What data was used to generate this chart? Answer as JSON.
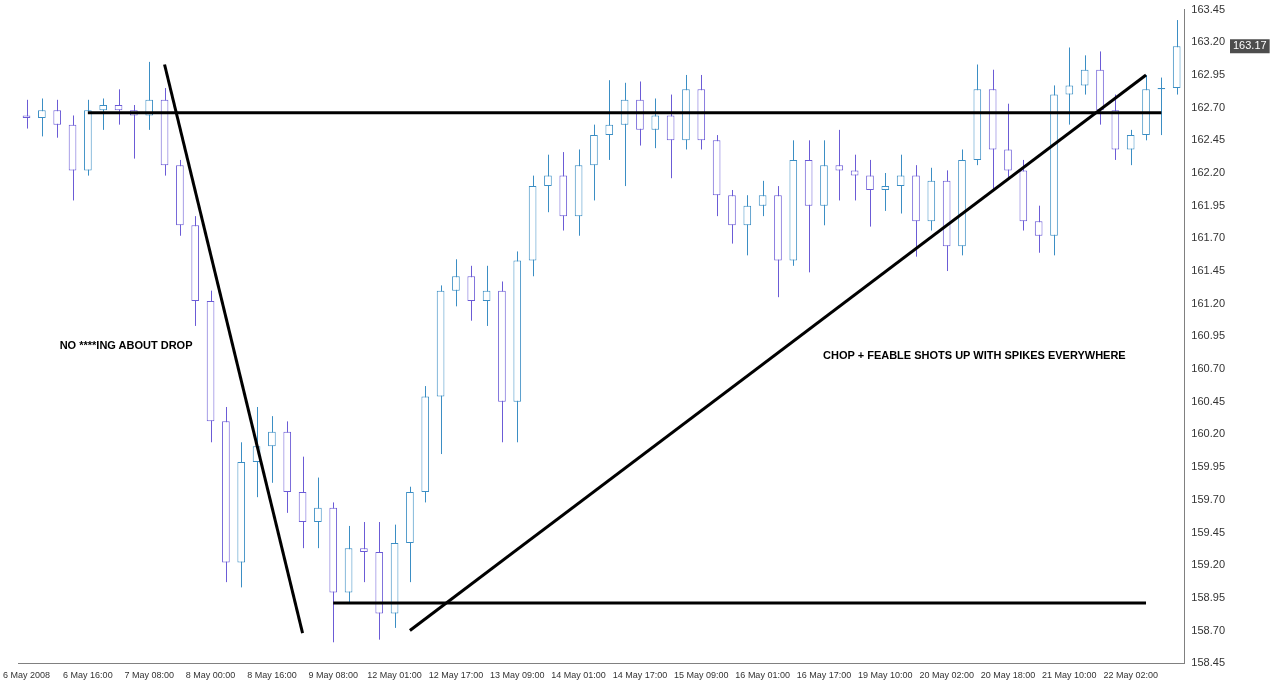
{
  "chart_data": {
    "type": "candlestick",
    "categories": [
      "6 May 2008",
      null,
      null,
      null,
      "6 May 16:00",
      null,
      null,
      null,
      "7 May 08:00",
      null,
      null,
      null,
      "8 May 00:00",
      null,
      null,
      null,
      "8 May 16:00",
      null,
      null,
      null,
      "9 May 08:00",
      null,
      null,
      null,
      "12 May 01:00",
      null,
      null,
      null,
      "12 May 17:00",
      null,
      null,
      null,
      "13 May 09:00",
      null,
      null,
      null,
      "14 May 01:00",
      null,
      null,
      null,
      "14 May 17:00",
      null,
      null,
      null,
      "15 May 09:00",
      null,
      null,
      null,
      "16 May 01:00",
      null,
      null,
      null,
      "16 May 17:00",
      null,
      null,
      null,
      "19 May 10:00",
      null,
      null,
      null,
      "20 May 02:00",
      null,
      null,
      null,
      "20 May 18:00",
      null,
      null,
      null,
      "21 May 10:00",
      null,
      null,
      null,
      "22 May 02:00",
      null,
      null,
      null
    ],
    "ohlc": [
      [
        162.64,
        162.76,
        162.54,
        162.62
      ],
      [
        162.62,
        162.77,
        162.48,
        162.68
      ],
      [
        162.68,
        162.76,
        162.47,
        162.57
      ],
      [
        162.57,
        162.64,
        161.99,
        162.22
      ],
      [
        162.22,
        162.76,
        162.18,
        162.68
      ],
      [
        162.68,
        162.77,
        162.53,
        162.72
      ],
      [
        162.72,
        162.84,
        162.57,
        162.68
      ],
      [
        162.68,
        162.72,
        162.31,
        162.64
      ],
      [
        162.64,
        163.05,
        162.53,
        162.76
      ],
      [
        162.76,
        162.85,
        162.18,
        162.26
      ],
      [
        162.26,
        162.3,
        161.72,
        161.8
      ],
      [
        161.8,
        161.87,
        161.03,
        161.22
      ],
      [
        161.22,
        161.3,
        160.14,
        160.3
      ],
      [
        160.3,
        160.41,
        159.07,
        159.22
      ],
      [
        159.22,
        160.14,
        159.03,
        159.99
      ],
      [
        159.99,
        160.41,
        159.72,
        160.11
      ],
      [
        160.11,
        160.34,
        159.83,
        160.22
      ],
      [
        160.22,
        160.3,
        159.6,
        159.76
      ],
      [
        159.76,
        160.03,
        159.33,
        159.53
      ],
      [
        159.53,
        159.87,
        159.33,
        159.64
      ],
      [
        159.64,
        159.68,
        158.61,
        158.99
      ],
      [
        158.99,
        159.5,
        158.91,
        159.33
      ],
      [
        159.33,
        159.53,
        159.07,
        159.3
      ],
      [
        159.3,
        159.53,
        158.63,
        158.83
      ],
      [
        158.83,
        159.51,
        158.72,
        159.37
      ],
      [
        159.37,
        159.8,
        159.07,
        159.76
      ],
      [
        159.76,
        160.57,
        159.68,
        160.49
      ],
      [
        160.49,
        161.34,
        160.05,
        161.3
      ],
      [
        161.3,
        161.54,
        161.18,
        161.41
      ],
      [
        161.41,
        161.49,
        161.07,
        161.22
      ],
      [
        161.22,
        161.49,
        161.03,
        161.3
      ],
      [
        161.3,
        161.37,
        160.14,
        160.45
      ],
      [
        160.45,
        161.6,
        160.14,
        161.53
      ],
      [
        161.53,
        162.18,
        161.41,
        162.1
      ],
      [
        162.1,
        162.34,
        161.9,
        162.18
      ],
      [
        162.18,
        162.36,
        161.76,
        161.87
      ],
      [
        161.87,
        162.38,
        161.72,
        162.26
      ],
      [
        162.26,
        162.57,
        161.99,
        162.49
      ],
      [
        162.49,
        162.91,
        162.3,
        162.57
      ],
      [
        162.57,
        162.89,
        162.1,
        162.76
      ],
      [
        162.76,
        162.9,
        162.41,
        162.53
      ],
      [
        162.53,
        162.77,
        162.39,
        162.64
      ],
      [
        162.64,
        162.8,
        162.16,
        162.45
      ],
      [
        162.45,
        162.95,
        162.38,
        162.84
      ],
      [
        162.84,
        162.95,
        162.38,
        162.45
      ],
      [
        162.45,
        162.49,
        161.87,
        162.03
      ],
      [
        162.03,
        162.07,
        161.66,
        161.8
      ],
      [
        161.8,
        162.03,
        161.57,
        161.95
      ],
      [
        161.95,
        162.14,
        161.87,
        162.03
      ],
      [
        162.03,
        162.1,
        161.25,
        161.53
      ],
      [
        161.53,
        162.45,
        161.49,
        162.3
      ],
      [
        162.3,
        162.45,
        161.44,
        161.95
      ],
      [
        161.95,
        162.45,
        161.8,
        162.26
      ],
      [
        162.26,
        162.53,
        161.99,
        162.22
      ],
      [
        162.22,
        162.34,
        161.99,
        162.18
      ],
      [
        162.18,
        162.3,
        161.79,
        162.07
      ],
      [
        162.07,
        162.2,
        161.91,
        162.1
      ],
      [
        162.1,
        162.34,
        161.89,
        162.18
      ],
      [
        162.18,
        162.26,
        161.56,
        161.83
      ],
      [
        161.83,
        162.24,
        161.76,
        162.14
      ],
      [
        162.14,
        162.22,
        161.45,
        161.64
      ],
      [
        161.64,
        162.38,
        161.57,
        162.3
      ],
      [
        162.3,
        163.03,
        162.26,
        162.84
      ],
      [
        162.84,
        162.99,
        162.07,
        162.38
      ],
      [
        162.38,
        162.73,
        162.16,
        162.22
      ],
      [
        162.22,
        162.3,
        161.76,
        161.83
      ],
      [
        161.83,
        161.95,
        161.59,
        161.72
      ],
      [
        161.72,
        162.87,
        161.57,
        162.8
      ],
      [
        162.8,
        163.16,
        162.57,
        162.87
      ],
      [
        162.87,
        163.1,
        162.8,
        162.99
      ],
      [
        162.99,
        163.13,
        162.57,
        162.68
      ],
      [
        162.68,
        162.8,
        162.3,
        162.38
      ],
      [
        162.38,
        162.53,
        162.26,
        162.49
      ],
      [
        162.49,
        162.95,
        162.45,
        162.84
      ],
      [
        162.84,
        162.93,
        162.49,
        162.85
      ],
      [
        162.85,
        163.37,
        162.8,
        163.17
      ]
    ],
    "colors": [
      "#6b5bd6",
      "#3b8ec4",
      "#6b5bd6",
      "#6b5bd6",
      "#3b8ec4",
      "#3b8ec4",
      "#6b5bd6",
      "#6b5bd6",
      "#3b8ec4",
      "#6b5bd6",
      "#6b5bd6",
      "#6b5bd6",
      "#6b5bd6",
      "#6b5bd6",
      "#3b8ec4",
      "#3b8ec4",
      "#3b8ec4",
      "#6b5bd6",
      "#6b5bd6",
      "#3b8ec4",
      "#6b5bd6",
      "#3b8ec4",
      "#6b5bd6",
      "#6b5bd6",
      "#3b8ec4",
      "#3b8ec4",
      "#3b8ec4",
      "#3b8ec4",
      "#3b8ec4",
      "#6b5bd6",
      "#3b8ec4",
      "#6b5bd6",
      "#3b8ec4",
      "#3b8ec4",
      "#3b8ec4",
      "#6b5bd6",
      "#3b8ec4",
      "#3b8ec4",
      "#3b8ec4",
      "#3b8ec4",
      "#6b5bd6",
      "#3b8ec4",
      "#6b5bd6",
      "#3b8ec4",
      "#6b5bd6",
      "#6b5bd6",
      "#6b5bd6",
      "#3b8ec4",
      "#3b8ec4",
      "#6b5bd6",
      "#3b8ec4",
      "#6b5bd6",
      "#3b8ec4",
      "#6b5bd6",
      "#6b5bd6",
      "#6b5bd6",
      "#3b8ec4",
      "#3b8ec4",
      "#6b5bd6",
      "#3b8ec4",
      "#6b5bd6",
      "#3b8ec4",
      "#3b8ec4",
      "#6b5bd6",
      "#6b5bd6",
      "#6b5bd6",
      "#6b5bd6",
      "#3b8ec4",
      "#3b8ec4",
      "#3b8ec4",
      "#6b5bd6",
      "#6b5bd6",
      "#3b8ec4",
      "#3b8ec4",
      "#3b8ec4",
      "#3b8ec4"
    ],
    "series": [
      {
        "type": "line",
        "color": "#000000",
        "values": [
          null,
          null,
          null,
          null,
          162.66,
          null,
          null,
          null,
          null,
          null,
          null,
          null,
          null,
          null,
          null,
          null,
          null,
          null,
          null,
          null,
          null,
          null,
          null,
          null,
          null,
          null,
          null,
          null,
          null,
          null,
          null,
          null,
          null,
          null,
          null,
          null,
          null,
          null,
          null,
          null,
          null,
          null,
          null,
          null,
          null,
          null,
          null,
          null,
          null,
          null,
          null,
          null,
          null,
          null,
          null,
          null,
          null,
          null,
          null,
          null,
          null,
          null,
          null,
          null,
          null,
          null,
          null,
          null,
          null,
          null,
          null,
          null,
          null,
          null,
          162.66,
          null
        ]
      },
      {
        "type": "line",
        "color": "#000000",
        "values": [
          null,
          null,
          null,
          null,
          null,
          null,
          null,
          null,
          null,
          163.03,
          null,
          null,
          null,
          null,
          null,
          null,
          null,
          null,
          158.68,
          null,
          null,
          null,
          null,
          null,
          null,
          null,
          null,
          null,
          null,
          null,
          null,
          null,
          null,
          null,
          null,
          null,
          null,
          null,
          null,
          null,
          null,
          null,
          null,
          null,
          null,
          null,
          null,
          null,
          null,
          null,
          null,
          null,
          null,
          null,
          null,
          null,
          null,
          null,
          null,
          null,
          null,
          null,
          null,
          null,
          null,
          null,
          null,
          null,
          null,
          null,
          null,
          null,
          null,
          null,
          null,
          null
        ]
      },
      {
        "type": "line",
        "color": "#000000",
        "values": [
          null,
          null,
          null,
          null,
          null,
          null,
          null,
          null,
          null,
          null,
          null,
          null,
          null,
          null,
          null,
          null,
          null,
          null,
          null,
          null,
          158.91,
          null,
          null,
          null,
          null,
          null,
          null,
          null,
          null,
          null,
          null,
          null,
          null,
          null,
          null,
          null,
          null,
          null,
          null,
          null,
          null,
          null,
          null,
          null,
          null,
          null,
          null,
          null,
          null,
          null,
          null,
          null,
          null,
          null,
          null,
          null,
          null,
          null,
          null,
          null,
          null,
          null,
          null,
          null,
          null,
          null,
          null,
          null,
          null,
          null,
          null,
          null,
          null,
          158.91,
          null,
          null
        ]
      },
      {
        "type": "line",
        "color": "#000000",
        "values": [
          null,
          null,
          null,
          null,
          null,
          null,
          null,
          null,
          null,
          null,
          null,
          null,
          null,
          null,
          null,
          null,
          null,
          null,
          null,
          null,
          null,
          null,
          null,
          null,
          null,
          158.7,
          null,
          null,
          null,
          null,
          null,
          null,
          null,
          null,
          null,
          null,
          null,
          null,
          null,
          null,
          null,
          null,
          null,
          null,
          null,
          null,
          null,
          null,
          null,
          null,
          null,
          null,
          null,
          null,
          null,
          null,
          null,
          null,
          null,
          null,
          null,
          null,
          null,
          null,
          null,
          null,
          null,
          null,
          null,
          null,
          null,
          null,
          null,
          162.95,
          null,
          null
        ]
      }
    ],
    "ylim": [
      158.45,
      163.45
    ],
    "yticks": [
      158.45,
      {
        "value": 158.7,
        "label": "158.70"
      },
      158.95,
      {
        "value": 159.2,
        "label": "159.20"
      },
      159.45,
      {
        "value": 159.7,
        "label": "159.70"
      },
      159.95,
      {
        "value": 160.2,
        "label": "160.20"
      },
      160.45,
      {
        "value": 160.7,
        "label": "160.70"
      },
      160.95,
      {
        "value": 161.2,
        "label": "161.20"
      },
      161.45,
      {
        "value": 161.7,
        "label": "161.70"
      },
      161.95,
      {
        "value": 162.2,
        "label": "162.20"
      },
      162.45,
      {
        "value": 162.7,
        "label": "162.70"
      },
      162.95,
      {
        "value": 163.2,
        "label": "163.20"
      },
      163.45
    ],
    "annotations": [
      "NO ****ING ABOUT DROP",
      "CHOP + FEABLE SHOTS UP WITH SPIKES EVERYWHERE",
      "163.17"
    ]
  }
}
